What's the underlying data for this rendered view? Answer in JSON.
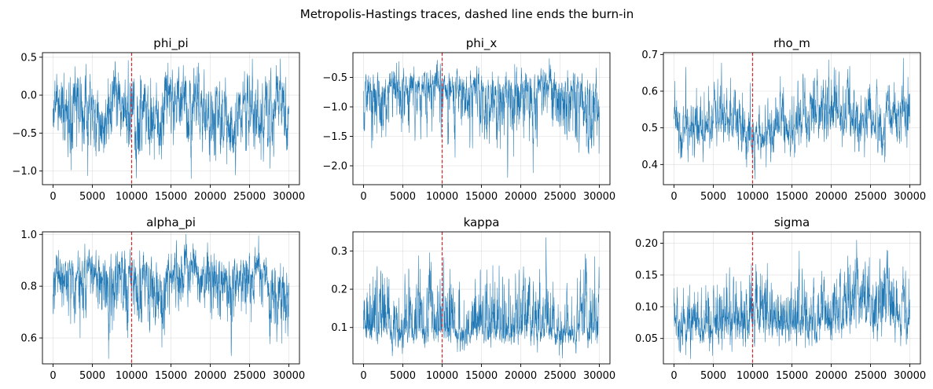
{
  "figure": {
    "title": "Metropolis-Hastings traces, dashed line ends the burn-in"
  },
  "chart_data": [
    {
      "type": "line",
      "title": "phi_pi",
      "x_range": [
        0,
        30000
      ],
      "xticks": [
        0,
        5000,
        10000,
        15000,
        20000,
        25000,
        30000
      ],
      "xtick_labels": [
        "0",
        "5000",
        "10000",
        "15000",
        "20000",
        "25000",
        "30000"
      ],
      "ylim": [
        -1.18,
        0.56
      ],
      "yticks": [
        -1.0,
        -0.5,
        0.0,
        0.5
      ],
      "ytick_labels": [
        "−1.0",
        "−0.5",
        "0.0",
        "0.5"
      ],
      "burn_in": 10000,
      "trace_summary": {
        "mean": -0.2,
        "min": -1.1,
        "max": 0.48
      },
      "series_color": "#1f77b4",
      "burn_color": "#d62728",
      "grid": true
    },
    {
      "type": "line",
      "title": "phi_x",
      "x_range": [
        0,
        30000
      ],
      "xticks": [
        0,
        5000,
        10000,
        15000,
        20000,
        25000,
        30000
      ],
      "xtick_labels": [
        "0",
        "5000",
        "10000",
        "15000",
        "20000",
        "25000",
        "30000"
      ],
      "ylim": [
        -2.32,
        -0.08
      ],
      "yticks": [
        -2.0,
        -1.5,
        -1.0,
        -0.5
      ],
      "ytick_labels": [
        "−2.0",
        "−1.5",
        "−1.0",
        "−0.5"
      ],
      "burn_in": 10000,
      "trace_summary": {
        "mean": -0.75,
        "min": -2.2,
        "max": -0.18
      },
      "series_color": "#1f77b4",
      "burn_color": "#d62728",
      "grid": true
    },
    {
      "type": "line",
      "title": "rho_m",
      "x_range": [
        0,
        30000
      ],
      "xticks": [
        0,
        5000,
        10000,
        15000,
        20000,
        25000,
        30000
      ],
      "xtick_labels": [
        "0",
        "5000",
        "10000",
        "15000",
        "20000",
        "25000",
        "30000"
      ],
      "ylim": [
        0.345,
        0.705
      ],
      "yticks": [
        0.4,
        0.5,
        0.6,
        0.7
      ],
      "ytick_labels": [
        "0.4",
        "0.5",
        "0.6",
        "0.7"
      ],
      "burn_in": 10000,
      "trace_summary": {
        "mean": 0.515,
        "min": 0.36,
        "max": 0.69
      },
      "series_color": "#1f77b4",
      "burn_color": "#d62728",
      "grid": true
    },
    {
      "type": "line",
      "title": "alpha_pi",
      "x_range": [
        0,
        30000
      ],
      "xticks": [
        0,
        5000,
        10000,
        15000,
        20000,
        25000,
        30000
      ],
      "xtick_labels": [
        "0",
        "5000",
        "10000",
        "15000",
        "20000",
        "25000",
        "30000"
      ],
      "ylim": [
        0.5,
        1.01
      ],
      "yticks": [
        0.6,
        0.8,
        1.0
      ],
      "ytick_labels": [
        "0.6",
        "0.8",
        "1.0"
      ],
      "burn_in": 10000,
      "trace_summary": {
        "mean": 0.83,
        "min": 0.52,
        "max": 1.0
      },
      "series_color": "#1f77b4",
      "burn_color": "#d62728",
      "grid": true
    },
    {
      "type": "line",
      "title": "kappa",
      "x_range": [
        0,
        30000
      ],
      "xticks": [
        0,
        5000,
        10000,
        15000,
        20000,
        25000,
        30000
      ],
      "xtick_labels": [
        "0",
        "5000",
        "10000",
        "15000",
        "20000",
        "25000",
        "30000"
      ],
      "ylim": [
        0.005,
        0.35
      ],
      "yticks": [
        0.1,
        0.2,
        0.3
      ],
      "ytick_labels": [
        "0.1",
        "0.2",
        "0.3"
      ],
      "burn_in": 10000,
      "trace_summary": {
        "mean": 0.1,
        "min": 0.02,
        "max": 0.335
      },
      "series_color": "#1f77b4",
      "burn_color": "#d62728",
      "grid": true
    },
    {
      "type": "line",
      "title": "sigma",
      "x_range": [
        0,
        30000
      ],
      "xticks": [
        0,
        5000,
        10000,
        15000,
        20000,
        25000,
        30000
      ],
      "xtick_labels": [
        "0",
        "5000",
        "10000",
        "15000",
        "20000",
        "25000",
        "30000"
      ],
      "ylim": [
        0.01,
        0.218
      ],
      "yticks": [
        0.05,
        0.1,
        0.15,
        0.2
      ],
      "ytick_labels": [
        "0.05",
        "0.10",
        "0.15",
        "0.20"
      ],
      "burn_in": 10000,
      "trace_summary": {
        "mean": 0.085,
        "min": 0.018,
        "max": 0.205
      },
      "series_color": "#1f77b4",
      "burn_color": "#d62728",
      "grid": true
    }
  ]
}
